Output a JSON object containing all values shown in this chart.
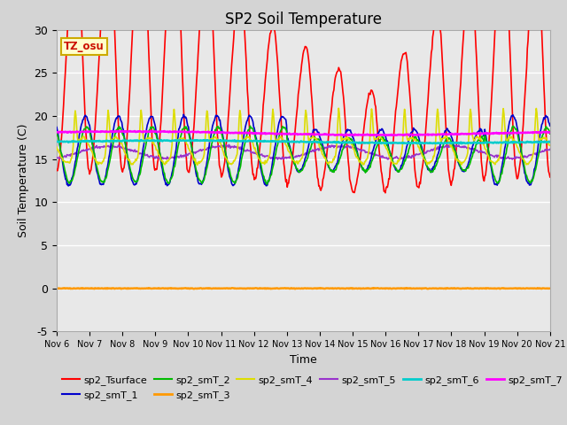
{
  "title": "SP2 Soil Temperature",
  "xlabel": "Time",
  "ylabel": "Soil Temperature (C)",
  "ylim": [
    -5,
    30
  ],
  "xlim": [
    0,
    15
  ],
  "annotation": "TZ_osu",
  "fig_facecolor": "#d4d4d4",
  "axes_facecolor": "#e8e8e8",
  "series": {
    "sp2_Tsurface": {
      "color": "#ff0000",
      "lw": 1.2
    },
    "sp2_smT_1": {
      "color": "#0000cc",
      "lw": 1.2
    },
    "sp2_smT_2": {
      "color": "#00bb00",
      "lw": 1.2
    },
    "sp2_smT_3": {
      "color": "#ff9900",
      "lw": 1.8
    },
    "sp2_smT_4": {
      "color": "#dddd00",
      "lw": 1.2
    },
    "sp2_smT_5": {
      "color": "#9933cc",
      "lw": 1.2
    },
    "sp2_smT_6": {
      "color": "#00cccc",
      "lw": 1.8
    },
    "sp2_smT_7": {
      "color": "#ff00ff",
      "lw": 1.8
    }
  },
  "xtick_labels": [
    "Nov 6",
    "Nov 7",
    "Nov 8",
    "Nov 9",
    "Nov 10",
    "Nov 11",
    "Nov 12",
    "Nov 13",
    "Nov 14",
    "Nov 15",
    "Nov 16",
    "Nov 17",
    "Nov 18",
    "Nov 19",
    "Nov 20",
    "Nov 21"
  ],
  "ytick_vals": [
    -5,
    0,
    5,
    10,
    15,
    20,
    25,
    30
  ],
  "legend_row1": [
    "sp2_Tsurface",
    "sp2_smT_1",
    "sp2_smT_2",
    "sp2_smT_3",
    "sp2_smT_4",
    "sp2_smT_5"
  ],
  "legend_row2": [
    "sp2_smT_6",
    "sp2_smT_7"
  ]
}
